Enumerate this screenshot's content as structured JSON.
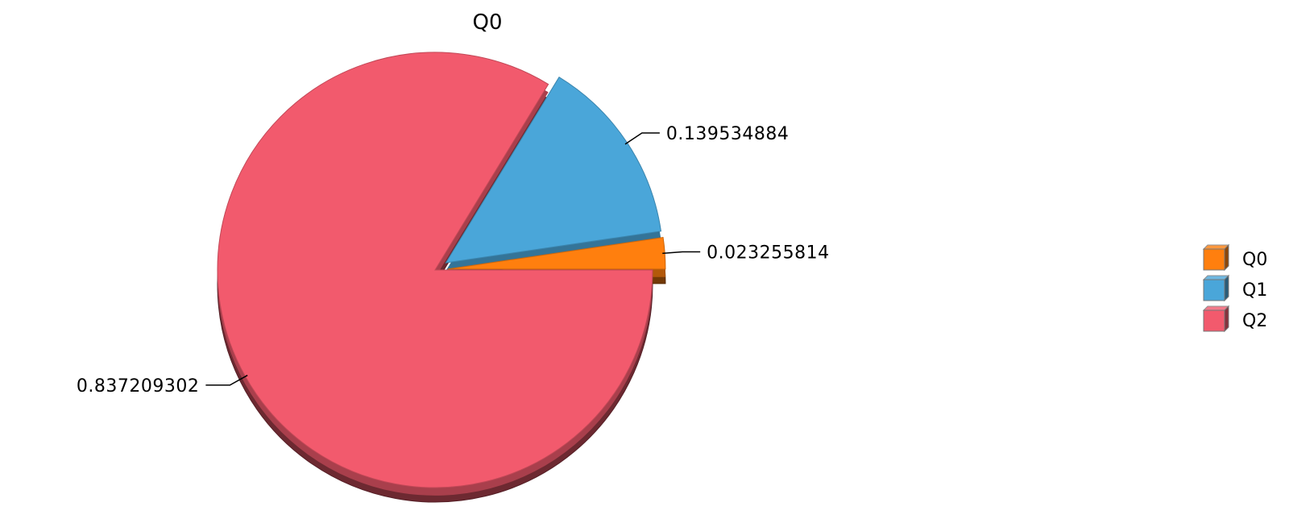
{
  "chart_data": {
    "type": "pie",
    "title": "Q0",
    "categories": [
      "Q0",
      "Q1",
      "Q2"
    ],
    "values": [
      0.023255814,
      0.139534884,
      0.837209302
    ],
    "value_labels": [
      "0.023255814",
      "0.139534884",
      "0.837209302"
    ],
    "exploded": [
      "Q0",
      "Q1"
    ],
    "three_d": true,
    "legend_position": "right",
    "colors": [
      "#ff7f0e",
      "#4aa6d9",
      "#f25a6d"
    ]
  }
}
